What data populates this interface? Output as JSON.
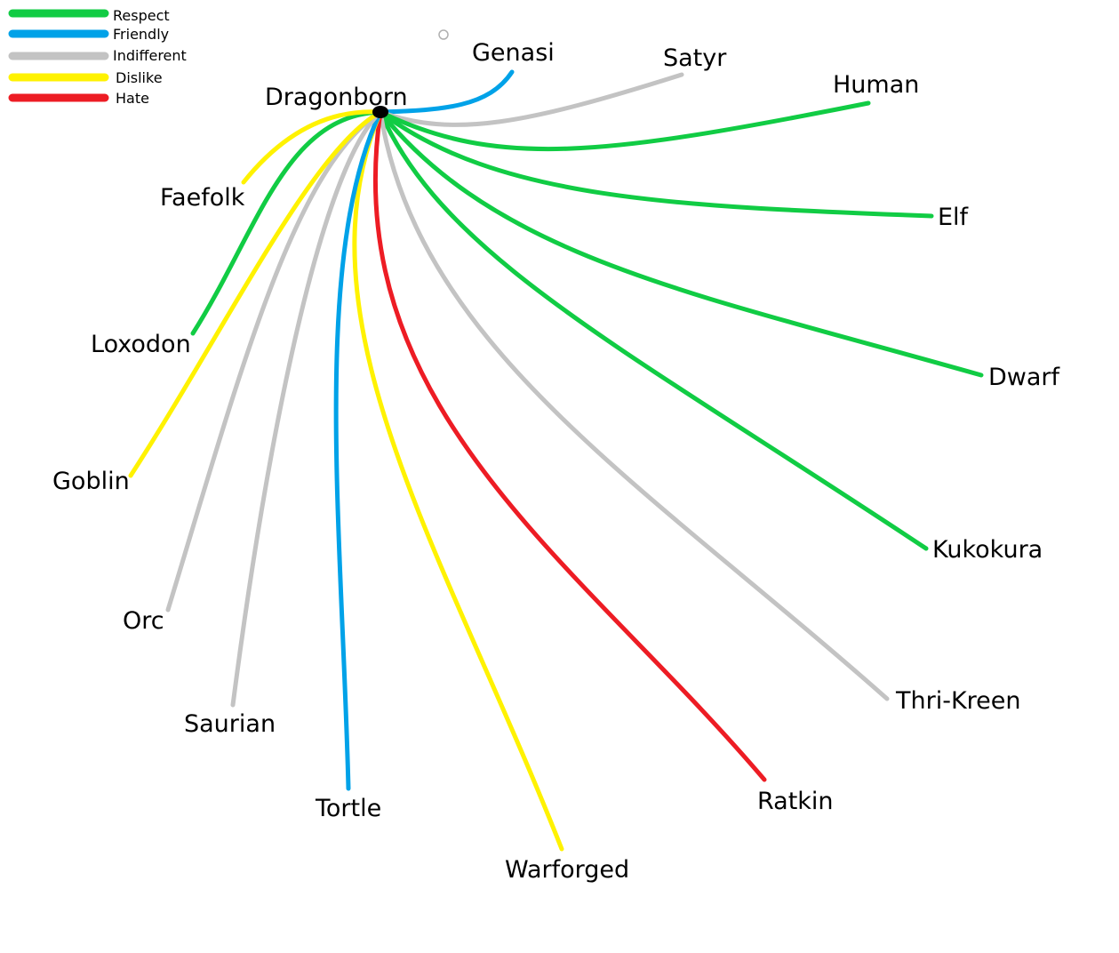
{
  "colors": {
    "respect": "#11cc44",
    "friendly": "#00a2e8",
    "indifferent": "#c3c3c3",
    "dislike": "#fff200",
    "hate": "#ed1c24",
    "center": "#000000"
  },
  "legend": [
    {
      "key": "respect",
      "label": "Respect"
    },
    {
      "key": "friendly",
      "label": "Friendly"
    },
    {
      "key": "indifferent",
      "label": "Indifferent"
    },
    {
      "key": "dislike",
      "label": "Dislike"
    },
    {
      "key": "hate",
      "label": "Hate"
    }
  ],
  "center": {
    "label": "Dragonborn"
  },
  "relations": [
    {
      "race": "Genasi",
      "attitude": "friendly"
    },
    {
      "race": "Satyr",
      "attitude": "indifferent"
    },
    {
      "race": "Human",
      "attitude": "respect"
    },
    {
      "race": "Elf",
      "attitude": "respect"
    },
    {
      "race": "Dwarf",
      "attitude": "respect"
    },
    {
      "race": "Kukokura",
      "attitude": "respect"
    },
    {
      "race": "Thri-Kreen",
      "attitude": "indifferent"
    },
    {
      "race": "Ratkin",
      "attitude": "hate"
    },
    {
      "race": "Warforged",
      "attitude": "dislike"
    },
    {
      "race": "Tortle",
      "attitude": "friendly"
    },
    {
      "race": "Saurian",
      "attitude": "indifferent"
    },
    {
      "race": "Orc",
      "attitude": "indifferent"
    },
    {
      "race": "Goblin",
      "attitude": "dislike"
    },
    {
      "race": "Loxodon",
      "attitude": "respect"
    },
    {
      "race": "Faefolk",
      "attitude": "dislike"
    }
  ]
}
